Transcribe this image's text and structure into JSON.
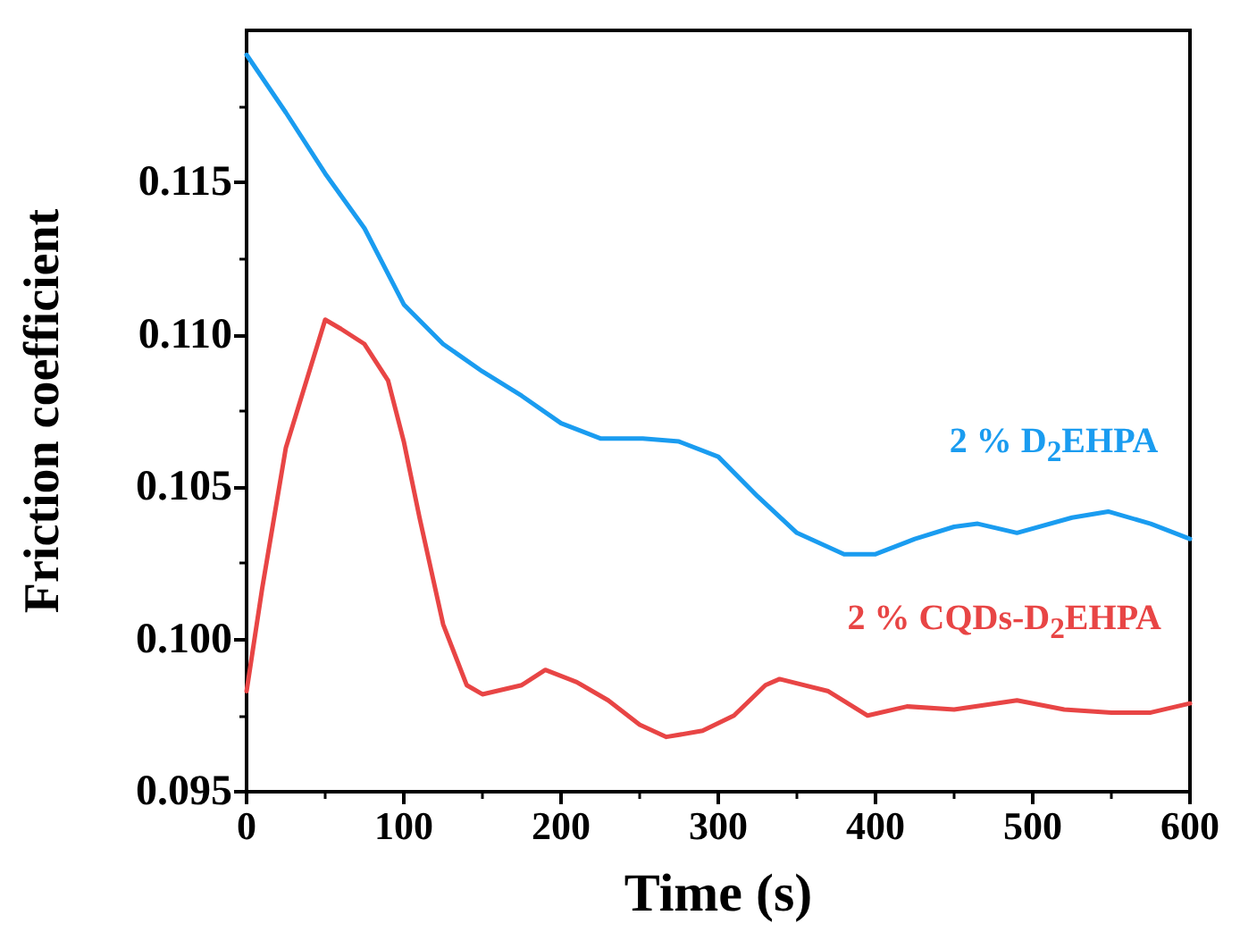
{
  "chart_data": {
    "type": "line",
    "xlabel": "Time (s)",
    "ylabel": "Friction coefficient",
    "xlim": [
      0,
      600
    ],
    "xticks": [
      0,
      100,
      200,
      300,
      400,
      500,
      600
    ],
    "ylim": [
      0.095,
      0.12
    ],
    "yticks": [
      {
        "value": 0.095,
        "label": "0.095"
      },
      {
        "value": 0.1,
        "label": "0.100"
      },
      {
        "value": 0.105,
        "label": "0.105"
      },
      {
        "value": 0.11,
        "label": "0.110"
      },
      {
        "value": 0.115,
        "label": "0.115"
      }
    ],
    "grid": false,
    "legend": false,
    "marker": "none",
    "line_style": "solid",
    "series": [
      {
        "name": "2 % D$_{2}$EHPA",
        "color": "#1a9cf0",
        "x": [
          0,
          25,
          50,
          75,
          100,
          125,
          150,
          175,
          200,
          225,
          252,
          275,
          300,
          325,
          350,
          380,
          400,
          425,
          450,
          465,
          490,
          525,
          548,
          575,
          600
        ],
        "values": [
          0.1192,
          0.1173,
          0.1153,
          0.1135,
          0.111,
          0.1097,
          0.1088,
          0.108,
          0.1071,
          0.1066,
          0.1066,
          0.1065,
          0.106,
          0.1047,
          0.1035,
          0.1028,
          0.1028,
          0.1033,
          0.1037,
          0.1038,
          0.1035,
          0.104,
          0.1042,
          0.1038,
          0.1033
        ]
      },
      {
        "name": "2 % CQDs-D$_{2}$EHPA",
        "color": "#e84545",
        "x": [
          0,
          10,
          25,
          50,
          60,
          75,
          90,
          100,
          110,
          125,
          140,
          150,
          175,
          190,
          210,
          230,
          250,
          267,
          290,
          310,
          330,
          339,
          370,
          395,
          420,
          450,
          490,
          520,
          550,
          575,
          600
        ],
        "values": [
          0.0983,
          0.1017,
          0.1063,
          0.1105,
          0.1102,
          0.1097,
          0.1085,
          0.1065,
          0.104,
          0.1005,
          0.0985,
          0.0982,
          0.0985,
          0.099,
          0.0986,
          0.098,
          0.0972,
          0.0968,
          0.097,
          0.0975,
          0.0985,
          0.0987,
          0.0983,
          0.0975,
          0.0978,
          0.0977,
          0.098,
          0.0977,
          0.0976,
          0.0976,
          0.0979
        ]
      }
    ]
  }
}
